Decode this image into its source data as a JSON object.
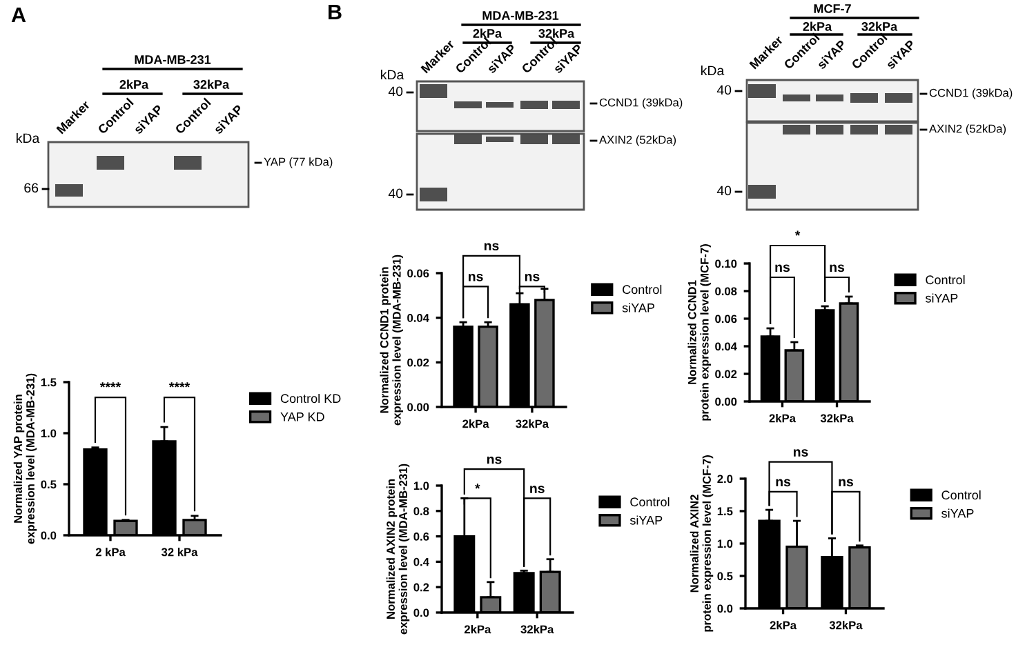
{
  "chart_data": [
    {
      "type": "other",
      "title": "MDA-MB-231",
      "categories": [
        "Marker",
        "Control",
        "siYAP",
        "Control",
        "siYAP"
      ],
      "annotations": [
        "A",
        "2kPa",
        "32kPa",
        "kDa",
        "66",
        "YAP (77 kDa)"
      ]
    },
    {
      "type": "bar",
      "categories": [
        "2 kPa",
        "32 kPa"
      ],
      "ylabel": "Normalized YAP protein\nexpression level (MDA-MB-231)",
      "ylim": [
        0,
        1.5
      ],
      "yticks": [
        {
          "value": 0,
          "label": "0.0"
        },
        {
          "value": 0.5,
          "label": "0.5"
        },
        {
          "value": 1.0,
          "label": "1.0"
        },
        {
          "value": 1.5,
          "label": "1.5"
        }
      ],
      "legend": "top right",
      "annotations": [
        "****",
        "****"
      ],
      "series": [
        {
          "name": "Control KD",
          "color": "#000000",
          "values": [
            0.84,
            0.92
          ],
          "errors": [
            [
              0.84,
              0.86
            ],
            [
              0.92,
              1.06
            ]
          ]
        },
        {
          "name": "YAP KD",
          "color": "#6b6b6b",
          "values": [
            0.14,
            0.15
          ],
          "errors": [
            [
              0.14,
              0.15
            ],
            [
              0.15,
              0.19
            ]
          ]
        }
      ]
    },
    {
      "type": "other",
      "title": "MDA-MB-231",
      "categories": [
        "Marker",
        "Control",
        "siYAP",
        "Control",
        "siYAP"
      ],
      "annotations": [
        "B",
        "2kPa",
        "32kPa",
        "kDa",
        "40",
        "CCND1 (39kDa)",
        "40",
        "AXIN2 (52kDa)"
      ]
    },
    {
      "type": "other",
      "title": "MCF-7",
      "categories": [
        "Marker",
        "Control",
        "siYAP",
        "Control",
        "siYAP"
      ],
      "annotations": [
        "2kPa",
        "32kPa",
        "kDa",
        "40",
        "CCND1 (39kDa)",
        "40",
        "AXIN2 (52kDa)"
      ]
    },
    {
      "type": "bar",
      "categories": [
        "2kPa",
        "32kPa"
      ],
      "ylabel": "Normalized CCND1 protein\nexpression level (MDA-MB-231)",
      "ylim": [
        0,
        0.06
      ],
      "yticks": [
        {
          "value": 0,
          "label": "0.00"
        },
        {
          "value": 0.02,
          "label": "0.02"
        },
        {
          "value": 0.04,
          "label": "0.04"
        },
        {
          "value": 0.06,
          "label": "0.06"
        }
      ],
      "legend": "top right",
      "annotations": [
        "ns",
        "ns",
        "ns"
      ],
      "series": [
        {
          "name": "Control",
          "color": "#000000",
          "values": [
            0.036,
            0.046
          ],
          "errors": [
            [
              0.036,
              0.038
            ],
            [
              0.046,
              0.051
            ]
          ]
        },
        {
          "name": "siYAP",
          "color": "#6b6b6b",
          "values": [
            0.036,
            0.048
          ],
          "errors": [
            [
              0.036,
              0.038
            ],
            [
              0.048,
              0.053
            ]
          ]
        }
      ]
    },
    {
      "type": "bar",
      "categories": [
        "2kPa",
        "32kPa"
      ],
      "ylabel": "Normalized CCND1\nprotein expression level (MCF-7)",
      "ylim": [
        0,
        0.1
      ],
      "yticks": [
        {
          "value": 0,
          "label": "0.00"
        },
        {
          "value": 0.02,
          "label": "0.02"
        },
        {
          "value": 0.04,
          "label": "0.04"
        },
        {
          "value": 0.06,
          "label": "0.06"
        },
        {
          "value": 0.08,
          "label": "0.08"
        },
        {
          "value": 0.1,
          "label": "0.10"
        }
      ],
      "legend": "top right",
      "annotations": [
        "ns",
        "ns",
        "*"
      ],
      "series": [
        {
          "name": "Control",
          "color": "#000000",
          "values": [
            0.047,
            0.066
          ],
          "errors": [
            [
              0.047,
              0.053
            ],
            [
              0.066,
              0.069
            ]
          ]
        },
        {
          "name": "siYAP",
          "color": "#6b6b6b",
          "values": [
            0.037,
            0.071
          ],
          "errors": [
            [
              0.037,
              0.043
            ],
            [
              0.071,
              0.076
            ]
          ]
        }
      ]
    },
    {
      "type": "bar",
      "categories": [
        "2kPa",
        "32kPa"
      ],
      "ylabel": "Normalized AXIN2 protein\nexpression level (MDA-MB-231)",
      "ylim": [
        0,
        1.0
      ],
      "yticks": [
        {
          "value": 0,
          "label": "0.0"
        },
        {
          "value": 0.2,
          "label": "0.2"
        },
        {
          "value": 0.4,
          "label": "0.4"
        },
        {
          "value": 0.6,
          "label": "0.6"
        },
        {
          "value": 0.8,
          "label": "0.8"
        },
        {
          "value": 1.0,
          "label": "1.0"
        }
      ],
      "legend": "top right",
      "annotations": [
        "*",
        "ns",
        "ns"
      ],
      "series": [
        {
          "name": "Control",
          "color": "#000000",
          "values": [
            0.6,
            0.31
          ],
          "errors": [
            [
              0.6,
              0.9
            ],
            [
              0.31,
              0.33
            ]
          ]
        },
        {
          "name": "siYAP",
          "color": "#6b6b6b",
          "values": [
            0.12,
            0.32
          ],
          "errors": [
            [
              0.12,
              0.24
            ],
            [
              0.32,
              0.42
            ]
          ]
        }
      ]
    },
    {
      "type": "bar",
      "categories": [
        "2kPa",
        "32kPa"
      ],
      "ylabel": "Normalized AXIN2\nprotein expression level (MCF-7)",
      "ylim": [
        0,
        2.0
      ],
      "yticks": [
        {
          "value": 0,
          "label": "0.0"
        },
        {
          "value": 0.5,
          "label": "0.5"
        },
        {
          "value": 1.0,
          "label": "1.0"
        },
        {
          "value": 1.5,
          "label": "1.5"
        },
        {
          "value": 2.0,
          "label": "2.0"
        }
      ],
      "legend": "top right",
      "annotations": [
        "ns",
        "ns",
        "ns"
      ],
      "series": [
        {
          "name": "Control",
          "color": "#000000",
          "values": [
            1.35,
            0.79
          ],
          "errors": [
            [
              1.35,
              1.52
            ],
            [
              0.79,
              1.08
            ]
          ]
        },
        {
          "name": "siYAP",
          "color": "#6b6b6b",
          "values": [
            0.95,
            0.94
          ],
          "errors": [
            [
              0.95,
              1.35
            ],
            [
              0.94,
              0.97
            ]
          ]
        }
      ]
    }
  ]
}
